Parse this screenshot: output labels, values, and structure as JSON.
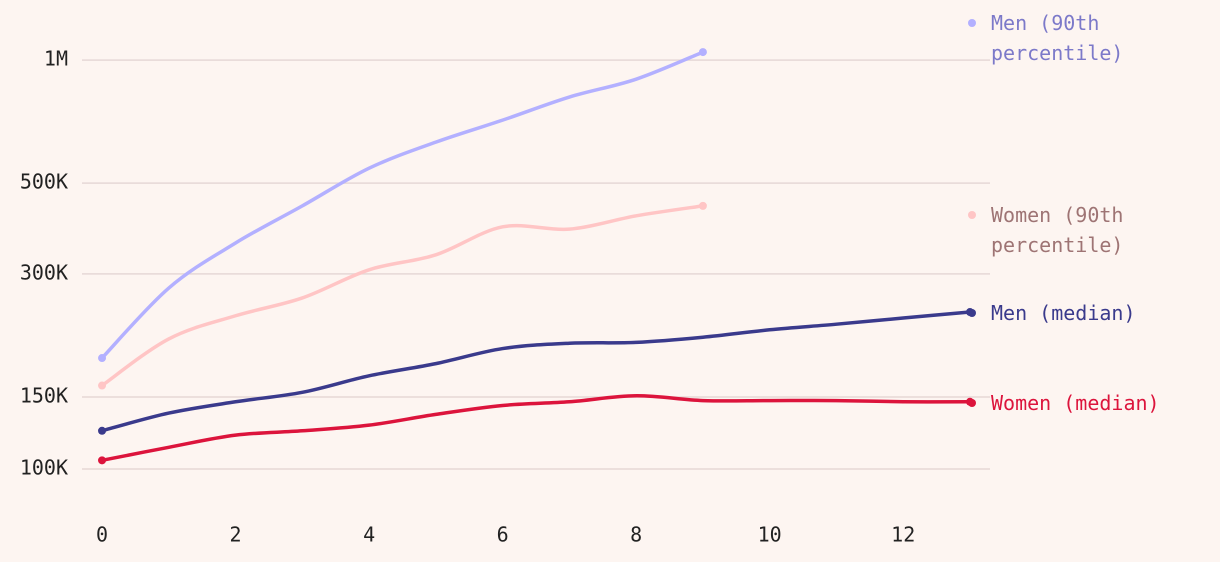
{
  "chart_data": {
    "type": "line",
    "log_y": true,
    "grid": true,
    "x": [
      0,
      1,
      2,
      3,
      4,
      5,
      6,
      7,
      8,
      9,
      10,
      11,
      12,
      13
    ],
    "xlim": [
      -0.3,
      13.3
    ],
    "xticks": [
      0,
      2,
      4,
      6,
      8,
      10,
      12
    ],
    "ylim": [
      100000,
      1050000
    ],
    "yticks": [
      {
        "value": 100000,
        "label": "100K"
      },
      {
        "value": 150000,
        "label": "150K"
      },
      {
        "value": 300000,
        "label": "300K"
      },
      {
        "value": 500000,
        "label": "500K"
      },
      {
        "value": 1000000,
        "label": "1M"
      }
    ],
    "series": [
      {
        "name": "Men (90th percentile)",
        "color": "#b3b0ff",
        "label_color": "#7c79c9",
        "values": [
          186800,
          277000,
          357000,
          440000,
          544000,
          630000,
          713000,
          812000,
          898000,
          1046000,
          null,
          null,
          null,
          null
        ]
      },
      {
        "name": "Women (90th percentile)",
        "color": "#ffc5c5",
        "label_color": "#9e7474",
        "values": [
          160000,
          208000,
          237000,
          262000,
          307000,
          334000,
          391000,
          386000,
          416000,
          440000,
          null,
          null,
          null,
          null
        ]
      },
      {
        "name": "Men (median)",
        "color": "#3a3a8c",
        "label_color": "#3a3a8c",
        "values": [
          124000,
          137000,
          146000,
          154000,
          169000,
          181000,
          197000,
          203000,
          204000,
          210000,
          219000,
          226000,
          234000,
          242000
        ]
      },
      {
        "name": "Women (median)",
        "color": "#dc143c",
        "label_color": "#dc143c",
        "values": [
          105000,
          113000,
          121000,
          124000,
          128000,
          136000,
          143000,
          146000,
          151000,
          147000,
          147000,
          147000,
          146000,
          146000
        ]
      }
    ]
  }
}
